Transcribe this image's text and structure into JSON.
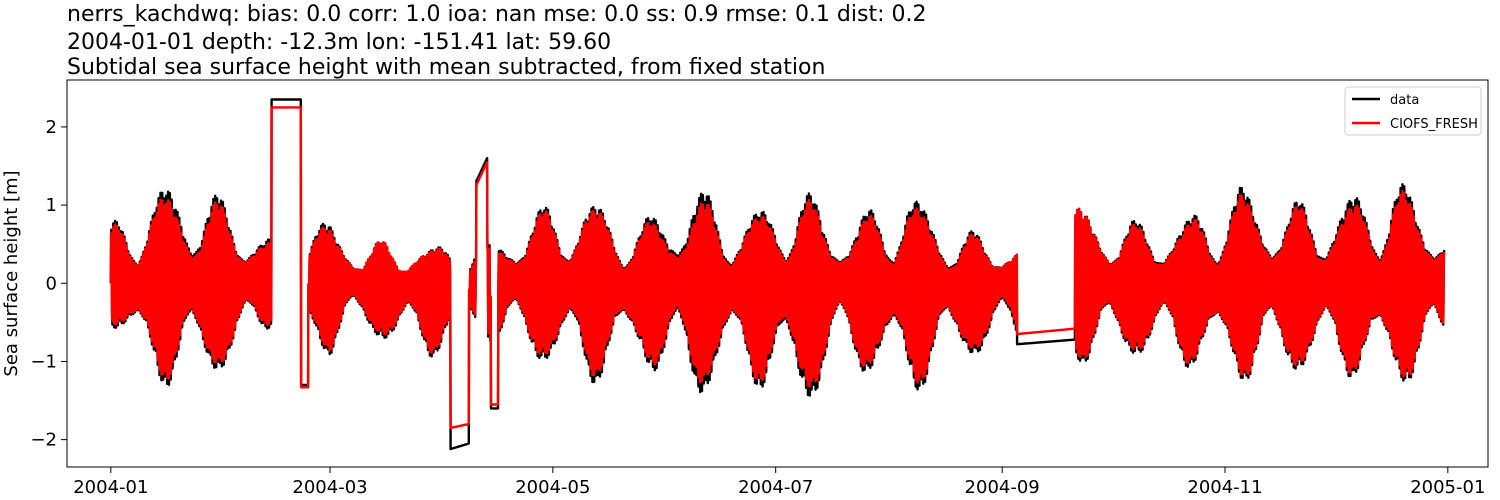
{
  "chart_data": {
    "type": "line",
    "title_lines": [
      "nerrs_kachdwq: bias: 0.0  corr: 1.0  ioa: nan  mse: 0.0  ss: 0.9  rmse: 0.1  dist: 0.2",
      "2004-01-01 depth: -12.3m lon: -151.41 lat: 59.60",
      "Subtidal sea surface height with mean subtracted, from fixed station"
    ],
    "xlabel": "",
    "ylabel": "Sea surface height [m]",
    "x_range": [
      "2003-12-20",
      "2005-01-12"
    ],
    "ylim": [
      -2.35,
      2.6
    ],
    "x_ticks": [
      "2004-01",
      "2004-03",
      "2004-05",
      "2004-07",
      "2004-09",
      "2004-11",
      "2005-01"
    ],
    "y_ticks": [
      -2,
      -1,
      0,
      1,
      2
    ],
    "grid": false,
    "legend_position": "top-right",
    "gaps": [
      {
        "start": "2004-09-05",
        "end": "2004-09-21",
        "data_values": [
          -0.78,
          -0.72
        ],
        "model_values": [
          -0.65,
          -0.58
        ]
      }
    ],
    "series": [
      {
        "name": "data",
        "color": "#000000",
        "envelope": {
          "dates": [
            "2004-01-01",
            "2004-01-10",
            "2004-01-20",
            "2004-02-05",
            "2004-02-14",
            "2004-03-01",
            "2004-03-10",
            "2004-03-24",
            "2004-04-10",
            "2004-04-25",
            "2004-05-10",
            "2004-05-25",
            "2004-06-08",
            "2004-06-22",
            "2004-07-07",
            "2004-07-20",
            "2004-08-06",
            "2004-08-20",
            "2004-09-05",
            "2004-09-21",
            "2004-10-08",
            "2004-10-22",
            "2004-11-05",
            "2004-11-18",
            "2004-12-04",
            "2004-12-17",
            "2004-12-31"
          ],
          "max": [
            0.75,
            1.1,
            1.35,
            0.95,
            0.6,
            0.8,
            0.5,
            0.5,
            0.45,
            0.9,
            1.1,
            0.75,
            1.25,
            0.85,
            1.25,
            0.75,
            1.2,
            0.65,
            0.55,
            1.0,
            0.75,
            0.85,
            1.25,
            1.0,
            1.1,
            1.35,
            0.9
          ],
          "min": [
            -0.55,
            -1.2,
            -1.35,
            -1.05,
            -0.5,
            -0.9,
            -0.6,
            -1.0,
            -0.7,
            -0.95,
            -1.3,
            -1.0,
            -1.5,
            -1.15,
            -1.7,
            -1.0,
            -1.45,
            -1.0,
            -0.8,
            -1.0,
            -0.95,
            -1.05,
            -1.25,
            -1.15,
            -1.15,
            -1.35,
            -1.05
          ]
        },
        "events": [
          {
            "date": "2004-02-14",
            "value": 2.35
          },
          {
            "date": "2004-02-22",
            "value": 2.33
          },
          {
            "date": "2004-02-24",
            "value": -1.3
          },
          {
            "date": "2004-04-04",
            "value": -2.12
          },
          {
            "date": "2004-04-08",
            "value": -2.05
          },
          {
            "date": "2004-04-13",
            "value": 1.6
          },
          {
            "date": "2004-04-16",
            "value": -1.6
          }
        ]
      },
      {
        "name": "CIOFS_FRESH",
        "color": "#ff0000",
        "envelope": {
          "dates": [
            "2004-01-01",
            "2004-01-10",
            "2004-01-20",
            "2004-02-05",
            "2004-02-14",
            "2004-03-01",
            "2004-03-10",
            "2004-03-24",
            "2004-04-10",
            "2004-04-25",
            "2004-05-10",
            "2004-05-25",
            "2004-06-08",
            "2004-06-22",
            "2004-07-07",
            "2004-07-20",
            "2004-08-06",
            "2004-08-20",
            "2004-09-05",
            "2004-09-21",
            "2004-10-08",
            "2004-10-22",
            "2004-11-05",
            "2004-11-18",
            "2004-12-04",
            "2004-12-17",
            "2004-12-31"
          ],
          "max": [
            0.7,
            1.05,
            1.2,
            0.9,
            0.55,
            0.75,
            0.5,
            0.5,
            0.4,
            0.85,
            1.05,
            0.7,
            1.1,
            0.8,
            1.15,
            0.7,
            1.1,
            0.6,
            0.55,
            1.0,
            0.7,
            0.8,
            1.15,
            0.95,
            1.0,
            1.25,
            0.85
          ],
          "min": [
            -0.5,
            -1.15,
            -1.25,
            -1.0,
            -0.45,
            -0.85,
            -0.55,
            -0.95,
            -0.65,
            -0.9,
            -1.2,
            -0.95,
            -1.35,
            -1.1,
            -1.55,
            -0.95,
            -1.35,
            -0.95,
            -0.7,
            -0.95,
            -0.9,
            -1.0,
            -1.2,
            -1.1,
            -1.1,
            -1.3,
            -1.0
          ]
        },
        "events": [
          {
            "date": "2004-02-14",
            "value": 2.25
          },
          {
            "date": "2004-02-22",
            "value": 2.24
          },
          {
            "date": "2004-02-24",
            "value": -1.33
          },
          {
            "date": "2004-04-04",
            "value": -1.85
          },
          {
            "date": "2004-04-08",
            "value": -1.8
          },
          {
            "date": "2004-04-13",
            "value": 1.55
          },
          {
            "date": "2004-04-16",
            "value": -1.55
          }
        ]
      }
    ]
  }
}
